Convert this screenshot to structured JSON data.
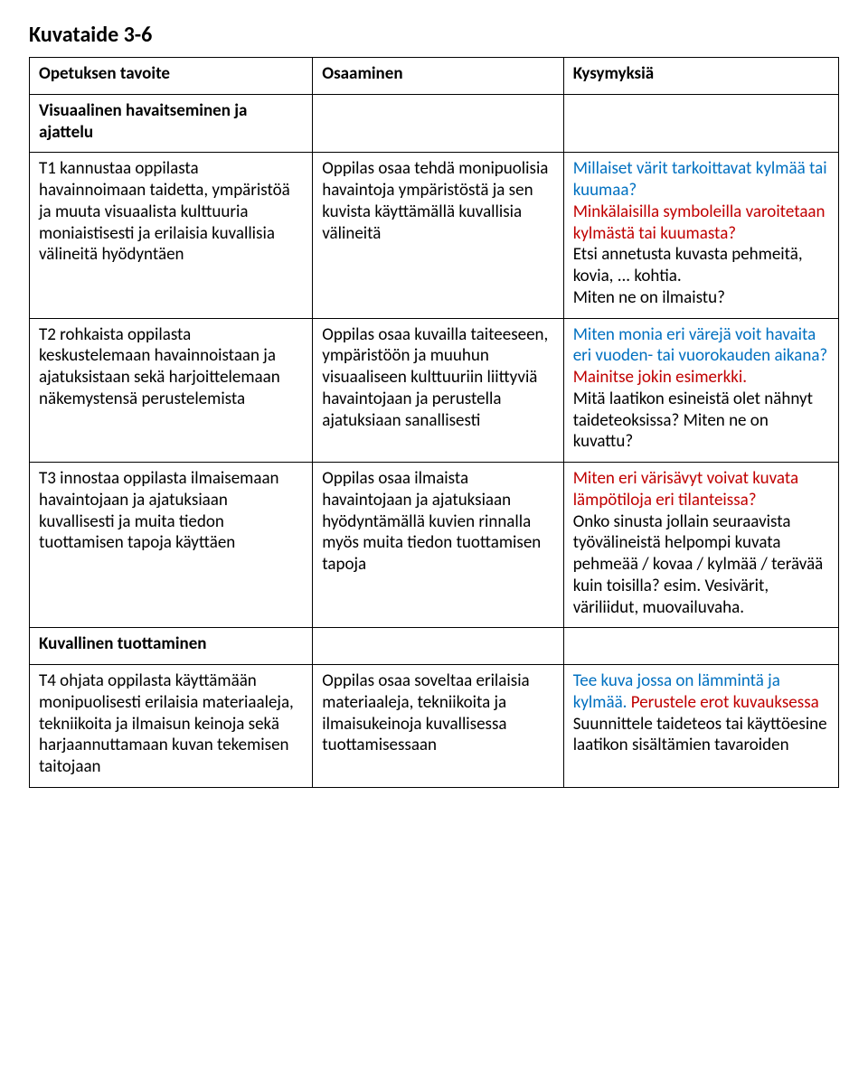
{
  "title": "Kuvataide 3-6",
  "header": {
    "c1": "Opetuksen tavoite",
    "c2": "Osaaminen",
    "c3": "Kysymyksiä"
  },
  "section1": "Visuaalinen havaitseminen ja ajattelu",
  "r1": {
    "c1": "T1 kannustaa oppilasta havainnoimaan taidetta, ympäristöä ja muuta visuaalista kulttuuria moniaistisesti ja erilaisia kuvallisia välineitä hyödyntäen",
    "c2": "Oppilas osaa tehdä monipuolisia havaintoja ympäristöstä ja sen kuvista käyttämällä kuvallisia välineitä",
    "q1": "Millaiset värit tarkoittavat kylmää tai kuumaa?",
    "q2": "Minkälaisilla symboleilla varoitetaan kylmästä tai kuumasta?",
    "q3a": "Etsi annetusta kuvasta pehmeitä, kovia, ... kohtia.",
    "q3b": "Miten ne on ilmaistu?"
  },
  "r2": {
    "c1": "T2 rohkaista oppilasta keskustelemaan havainnoistaan ja ajatuksistaan sekä harjoittelemaan näkemystensä perustelemista",
    "c2": "Oppilas osaa kuvailla taiteeseen, ympäristöön ja muuhun visuaaliseen kulttuuriin liittyviä havaintojaan ja perustella ajatuksiaan sanallisesti",
    "q1a": "Miten monia eri värejä voit havaita eri vuoden- tai vuorokauden aikana?",
    "q1b": " Mainitse jokin esimerkki.",
    "q2a": "Mitä laatikon esineistä olet nähnyt taideteoksissa?",
    "q2b": " Miten ne on kuvattu?"
  },
  "r3": {
    "c1": "T3 innostaa oppilasta ilmaisemaan havaintojaan ja ajatuksiaan kuvallisesti ja muita tiedon tuottamisen tapoja käyttäen",
    "c2": "Oppilas osaa ilmaista havaintojaan ja ajatuksiaan hyödyntämällä kuvien rinnalla myös muita tiedon tuottamisen tapoja",
    "q1": "Miten eri värisävyt voivat kuvata lämpötiloja eri tilanteissa?",
    "q2a": "Onko sinusta jollain seuraavista työvälineistä helpompi kuvata pehmeää / kovaa / kylmää / terävää kuin toisilla?",
    "q2b": " esim. Vesivärit, väriliidut, muovailuvaha."
  },
  "section2": "Kuvallinen tuottaminen",
  "r4": {
    "c1": "T4 ohjata oppilasta käyttämään monipuolisesti erilaisia materiaaleja, tekniikoita ja ilmaisun keinoja sekä harjaannuttamaan kuvan tekemisen taitojaan",
    "c2": "Oppilas osaa soveltaa erilaisia materiaaleja, tekniikoita ja ilmaisukeinoja kuvallisessa tuottamisessaan",
    "q1a": "Tee kuva jossa on lämmintä ja kylmää.",
    "q1b": " Perustele erot kuvauksessa",
    "q2": "Suunnittele taideteos tai käyttöesine laatikon sisältämien tavaroiden"
  },
  "style": {
    "colors": {
      "blue": "#0070c0",
      "red": "#c00000",
      "black": "#000000",
      "border": "#000000",
      "bg": "#ffffff"
    },
    "font": {
      "family": "Calibri",
      "body_pt": 14,
      "title_pt": 18
    },
    "col_widths_pct": [
      35,
      31,
      34
    ]
  }
}
